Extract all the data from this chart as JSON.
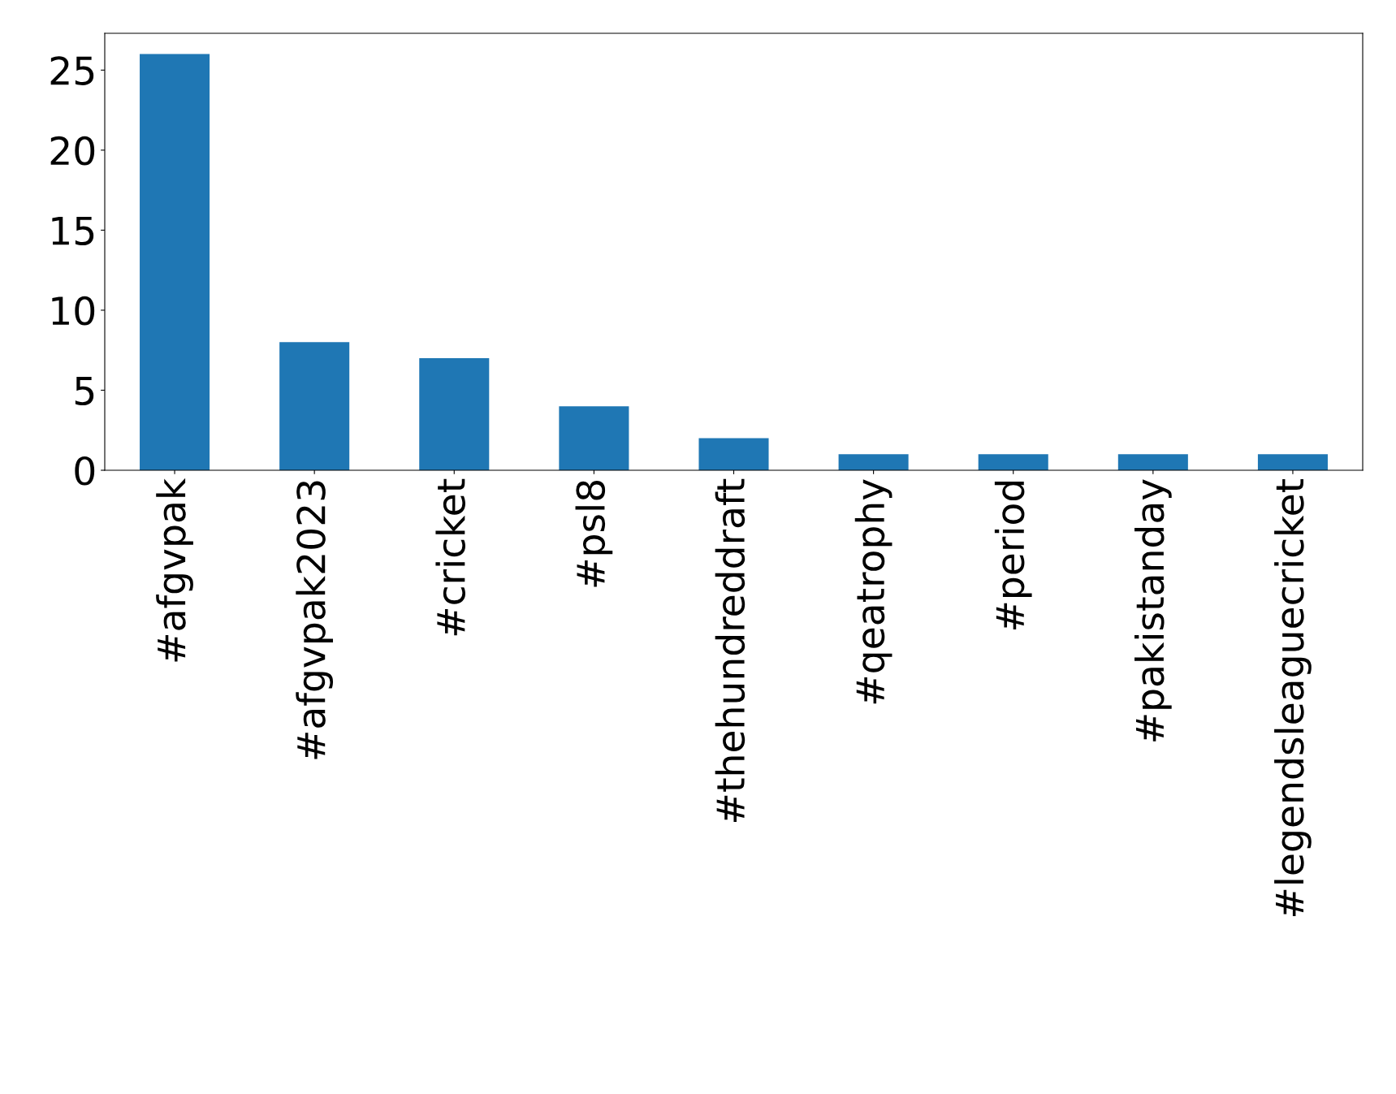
{
  "chart_data": {
    "type": "bar",
    "categories": [
      "#afgvpak",
      "#afgvpak2023",
      "#cricket",
      "#psl8",
      "#thehundreddraft",
      "#qeatrophy",
      "#period",
      "#pakistanday",
      "#legendsleaguecricket"
    ],
    "values": [
      26,
      8,
      7,
      4,
      2,
      1,
      1,
      1,
      1
    ],
    "color": "#1f77b4",
    "ylim": [
      0,
      27.3
    ],
    "yticks": [
      0,
      5,
      10,
      15,
      20,
      25
    ],
    "grid": false,
    "legend": false
  }
}
